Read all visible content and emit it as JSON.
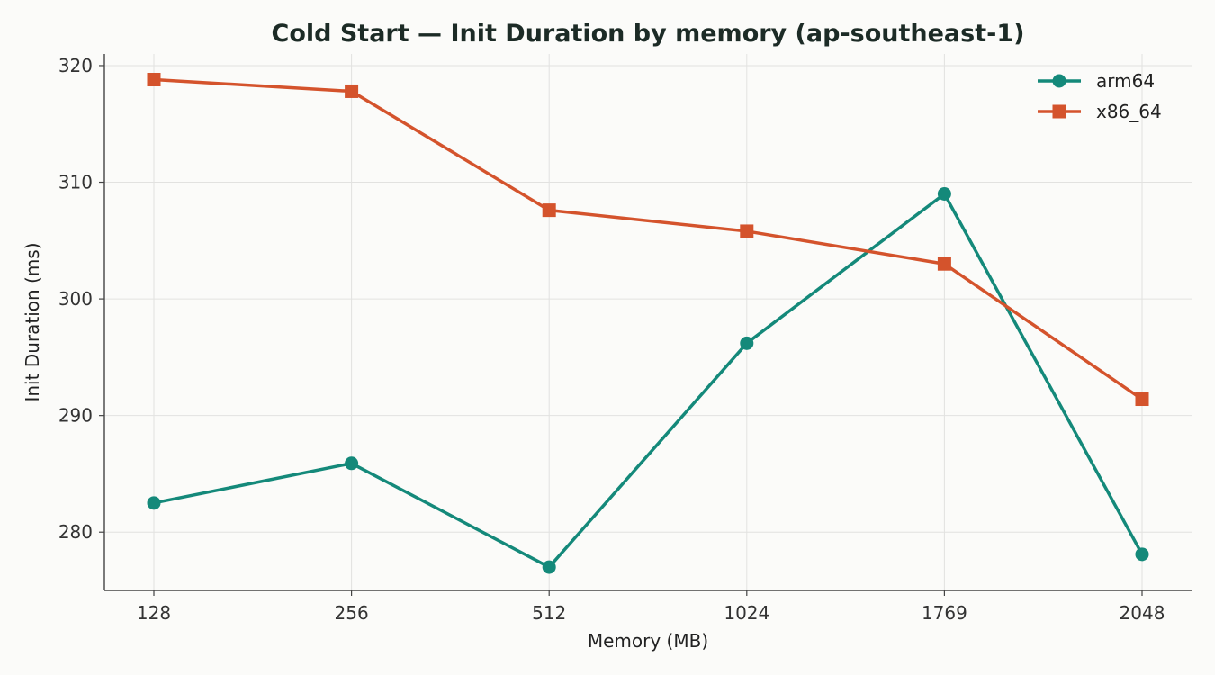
{
  "chart_data": {
    "type": "line",
    "title": "Cold Start — Init Duration by memory (ap-southeast-1)",
    "xlabel": "Memory (MB)",
    "ylabel": "Init Duration (ms)",
    "categories": [
      "128",
      "256",
      "512",
      "1024",
      "1769",
      "2048"
    ],
    "ylim": [
      275,
      321
    ],
    "yticks": [
      280,
      290,
      300,
      310,
      320
    ],
    "grid": true,
    "legend_position": "top-right",
    "series": [
      {
        "name": "arm64",
        "marker": "circle",
        "color": "#14897a",
        "values": [
          282.5,
          285.9,
          277.0,
          296.2,
          309.0,
          278.1
        ]
      },
      {
        "name": "x86_64",
        "marker": "square",
        "color": "#d4532c",
        "values": [
          318.8,
          317.8,
          307.6,
          305.8,
          303.0,
          291.4
        ]
      }
    ]
  }
}
